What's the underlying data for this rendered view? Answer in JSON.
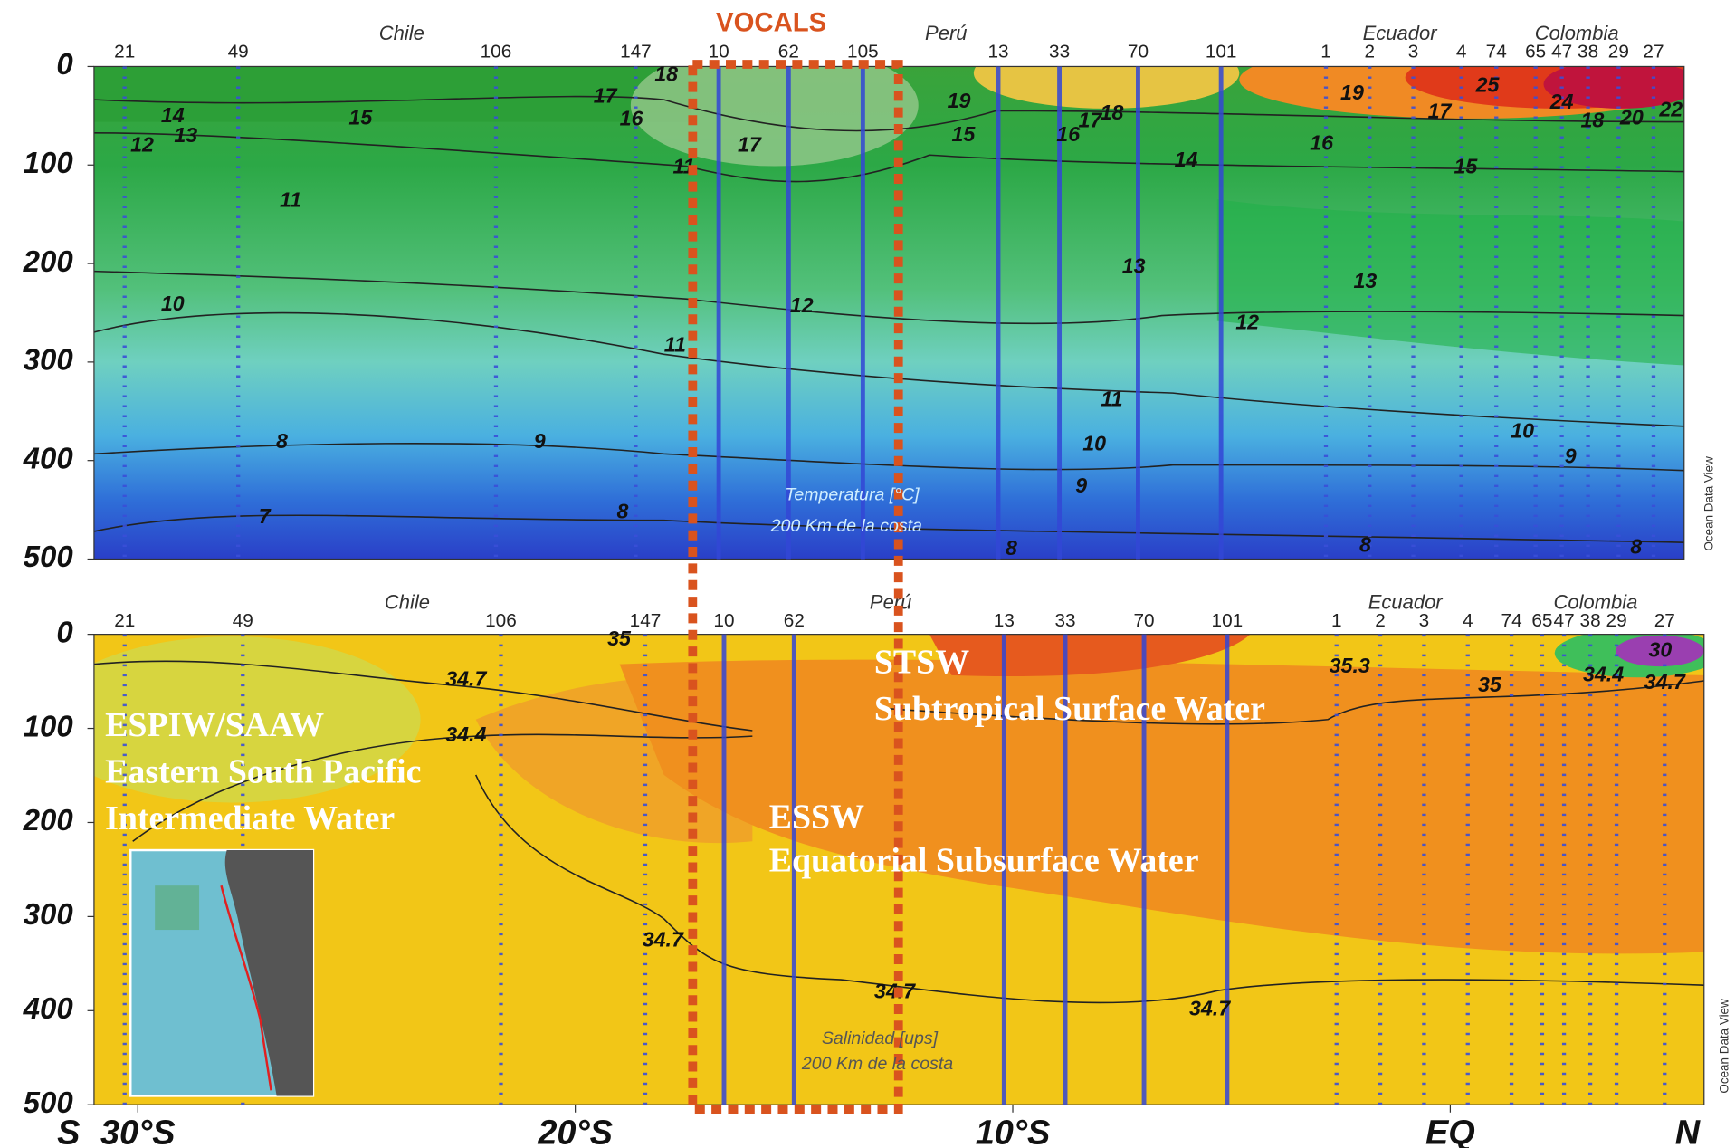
{
  "chart_data": [
    {
      "type": "contour",
      "title": "Temperatura [°C]",
      "subtitle": "200 Km de la costa",
      "highlight": "VOCALS",
      "watermark": "Ocean Data View",
      "regions": [
        "Chile",
        "Perú",
        "Ecuador",
        "Colombia"
      ],
      "xlim": [
        -31,
        5.4
      ],
      "ylim": [
        0,
        500
      ],
      "yticks": [
        0,
        100,
        200,
        300,
        400,
        500
      ],
      "stations": [
        {
          "id": 21,
          "lat": -30.3
        },
        {
          "id": 49,
          "lat": -27.7
        },
        {
          "id": 106,
          "lat": -21.8
        },
        {
          "id": 147,
          "lat": -18.6
        },
        {
          "id": 10,
          "lat": -16.7
        },
        {
          "id": 62,
          "lat": -15.1
        },
        {
          "id": 105,
          "lat": -13.4
        },
        {
          "id": 13,
          "lat": -10.3
        },
        {
          "id": 33,
          "lat": -8.9
        },
        {
          "id": 70,
          "lat": -7.1
        },
        {
          "id": 101,
          "lat": -5.2
        },
        {
          "id": 1,
          "lat": -2.8
        },
        {
          "id": 2,
          "lat": -1.8
        },
        {
          "id": 3,
          "lat": -0.8
        },
        {
          "id": 4,
          "lat": 0.3
        },
        {
          "id": 74,
          "lat": 1.1
        },
        {
          "id": 65,
          "lat": 2.0
        },
        {
          "id": 47,
          "lat": 2.6
        },
        {
          "id": 38,
          "lat": 3.2
        },
        {
          "id": 29,
          "lat": 3.9
        },
        {
          "id": 27,
          "lat": 4.7
        }
      ],
      "contour_labels": [
        {
          "value": 14,
          "lat": -29.2,
          "depth": 51
        },
        {
          "value": 12,
          "lat": -29.9,
          "depth": 81
        },
        {
          "value": 13,
          "lat": -28.9,
          "depth": 71
        },
        {
          "value": 15,
          "lat": -24.9,
          "depth": 53
        },
        {
          "value": 17,
          "lat": -19.3,
          "depth": 31
        },
        {
          "value": 16,
          "lat": -18.7,
          "depth": 54
        },
        {
          "value": 18,
          "lat": -17.9,
          "depth": 9
        },
        {
          "value": 11,
          "lat": -17.5,
          "depth": 103
        },
        {
          "value": 17,
          "lat": -16.0,
          "depth": 81
        },
        {
          "value": 11,
          "lat": -26.5,
          "depth": 137
        },
        {
          "value": 10,
          "lat": -29.2,
          "depth": 242
        },
        {
          "value": 12,
          "lat": -14.8,
          "depth": 244
        },
        {
          "value": 11,
          "lat": -17.7,
          "depth": 284
        },
        {
          "value": 9,
          "lat": -20.8,
          "depth": 382
        },
        {
          "value": 8,
          "lat": -26.7,
          "depth": 382
        },
        {
          "value": 8,
          "lat": -18.9,
          "depth": 453
        },
        {
          "value": 7,
          "lat": -27.1,
          "depth": 458
        },
        {
          "value": 19,
          "lat": -11.2,
          "depth": 36
        },
        {
          "value": 15,
          "lat": -11.1,
          "depth": 70
        },
        {
          "value": 16,
          "lat": -8.7,
          "depth": 70
        },
        {
          "value": 17,
          "lat": -8.2,
          "depth": 56
        },
        {
          "value": 18,
          "lat": -7.7,
          "depth": 48
        },
        {
          "value": 14,
          "lat": -6.0,
          "depth": 96
        },
        {
          "value": 13,
          "lat": -7.2,
          "depth": 204
        },
        {
          "value": 11,
          "lat": -7.7,
          "depth": 339
        },
        {
          "value": 10,
          "lat": -8.1,
          "depth": 384
        },
        {
          "value": 9,
          "lat": -8.4,
          "depth": 427
        },
        {
          "value": 8,
          "lat": -10.0,
          "depth": 490
        },
        {
          "value": 12,
          "lat": -4.6,
          "depth": 261
        },
        {
          "value": 13,
          "lat": -1.9,
          "depth": 219
        },
        {
          "value": 16,
          "lat": -2.9,
          "depth": 79
        },
        {
          "value": 17,
          "lat": -0.2,
          "depth": 47
        },
        {
          "value": 15,
          "lat": 0.4,
          "depth": 103
        },
        {
          "value": 19,
          "lat": -2.2,
          "depth": 28
        },
        {
          "value": 10,
          "lat": 1.7,
          "depth": 371
        },
        {
          "value": 9,
          "lat": 2.8,
          "depth": 397
        },
        {
          "value": 8,
          "lat": -1.9,
          "depth": 487
        },
        {
          "value": 8,
          "lat": 4.3,
          "depth": 489
        },
        {
          "value": 25,
          "lat": 0.9,
          "depth": 20
        },
        {
          "value": 24,
          "lat": 2.6,
          "depth": 37
        },
        {
          "value": 18,
          "lat": 3.3,
          "depth": 56
        },
        {
          "value": 20,
          "lat": 4.2,
          "depth": 53
        },
        {
          "value": 22,
          "lat": 5.1,
          "depth": 45
        }
      ]
    },
    {
      "type": "contour",
      "title": "Salinidad [ups]",
      "subtitle": "200 Km de la costa",
      "watermark": "Ocean Data View",
      "regions": [
        "Chile",
        "Perú",
        "Ecuador",
        "Colombia"
      ],
      "xlim": [
        -31,
        5.8
      ],
      "ylim": [
        0,
        500
      ],
      "yticks": [
        0,
        100,
        200,
        300,
        400,
        500
      ],
      "xticks": [
        {
          "value": -30,
          "label": "30°S"
        },
        {
          "value": -20,
          "label": "20°S"
        },
        {
          "value": -10,
          "label": "10°S"
        },
        {
          "value": 0,
          "label": "EQ"
        }
      ],
      "x_end_labels": [
        "S",
        "N"
      ],
      "stations": [
        {
          "id": 21,
          "lat": -30.3
        },
        {
          "id": 49,
          "lat": -27.6
        },
        {
          "id": 106,
          "lat": -21.7
        },
        {
          "id": 147,
          "lat": -18.4
        },
        {
          "id": 10,
          "lat": -16.6
        },
        {
          "id": 62,
          "lat": -15.0
        },
        {
          "id": 13,
          "lat": -10.2
        },
        {
          "id": 33,
          "lat": -8.8
        },
        {
          "id": 70,
          "lat": -7.0
        },
        {
          "id": 101,
          "lat": -5.1
        },
        {
          "id": 1,
          "lat": -2.6
        },
        {
          "id": 2,
          "lat": -1.6
        },
        {
          "id": 3,
          "lat": -0.6
        },
        {
          "id": 4,
          "lat": 0.4
        },
        {
          "id": 74,
          "lat": 1.4
        },
        {
          "id": 65,
          "lat": 2.1
        },
        {
          "id": 47,
          "lat": 2.6
        },
        {
          "id": 38,
          "lat": 3.2
        },
        {
          "id": 29,
          "lat": 3.8
        },
        {
          "id": 27,
          "lat": 4.9
        }
      ],
      "contour_labels": [
        {
          "value": 34.7,
          "lat": -22.5,
          "depth": 49
        },
        {
          "value": 34.4,
          "lat": -22.5,
          "depth": 108
        },
        {
          "value": 35,
          "lat": -19.0,
          "depth": 6
        },
        {
          "value": 34.7,
          "lat": -18.0,
          "depth": 326
        },
        {
          "value": 34.7,
          "lat": -12.7,
          "depth": 381
        },
        {
          "value": 34.7,
          "lat": -5.5,
          "depth": 399
        },
        {
          "value": 35.3,
          "lat": -2.3,
          "depth": 35
        },
        {
          "value": 35,
          "lat": 0.9,
          "depth": 55
        },
        {
          "value": 34.4,
          "lat": 3.5,
          "depth": 44
        },
        {
          "value": 34.7,
          "lat": 4.9,
          "depth": 52
        },
        {
          "value": 30,
          "lat": 4.8,
          "depth": 18
        }
      ],
      "water_masses": [
        {
          "name": "ESPIW/SAAW",
          "description": [
            "Eastern South Pacific",
            "Intermediate Water"
          ]
        },
        {
          "name": "STSW",
          "description": [
            "Subtropical Surface Water"
          ]
        },
        {
          "name": "ESSW",
          "description": [
            "Equatorial Subsurface Water"
          ]
        }
      ]
    }
  ]
}
